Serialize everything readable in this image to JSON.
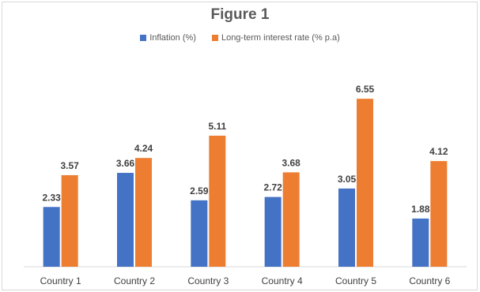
{
  "chart_data": {
    "type": "bar",
    "title": "Figure 1",
    "categories": [
      "Country 1",
      "Country 2",
      "Country 3",
      "Country 4",
      "Country 5",
      "Country 6"
    ],
    "series": [
      {
        "name": "Inflation (%)",
        "color": "#4472C4",
        "values": [
          2.33,
          3.66,
          2.59,
          2.72,
          3.05,
          1.88
        ]
      },
      {
        "name": "Long-term interest rate (% p.a)",
        "color": "#ED7D31",
        "values": [
          3.57,
          4.24,
          5.11,
          3.68,
          6.55,
          4.12
        ]
      }
    ],
    "ylim": [
      0,
      7
    ],
    "legend_position": "top",
    "grid": false
  }
}
